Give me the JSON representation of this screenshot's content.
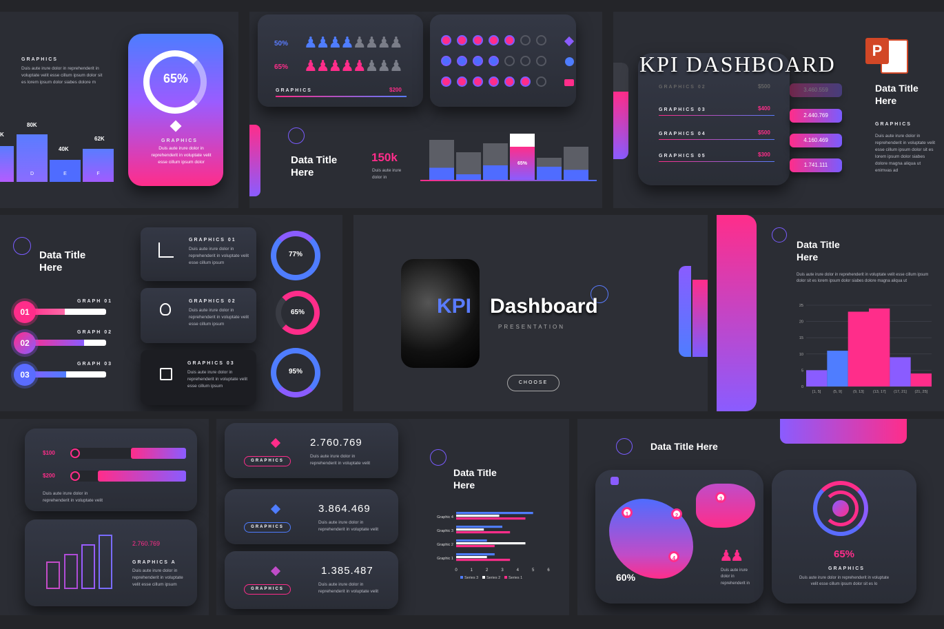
{
  "s1": {
    "label": "GRAPHICS",
    "body": "Duis aute irure dolor in reprehenderit in voluptate velit esse cillum ipsum dolor sit es lorem ipsum dolor siabes dolore m",
    "bars": [
      {
        "value": "K",
        "letter": ""
      },
      {
        "value": "80K",
        "letter": "D"
      },
      {
        "value": "40K",
        "letter": "E"
      },
      {
        "value": "62K",
        "letter": "F"
      }
    ],
    "percent": "65%",
    "card_label": "GRAPHICS",
    "card_body": "Duis aute irure dolor in reprehenderit in voluptate velit esse cillum ipsum dolor"
  },
  "s2": {
    "row1_pct": "50%",
    "row2_pct": "65%",
    "label": "GRAPHICS",
    "amount": "$200",
    "title": "Data Title Here",
    "stat": "150k",
    "stat_body": "Duis aute irure dolor in",
    "bar_pct": "65%"
  },
  "s3": {
    "title": "KPI DASHBOARD",
    "rows": [
      {
        "label": "GRAPHICS 02",
        "amount": "$500",
        "value": "3.460.559"
      },
      {
        "label": "GRAPHICS 03",
        "amount": "$400",
        "value": "2.440.769"
      },
      {
        "label": "GRAPHICS 04",
        "amount": "$500",
        "value": "4.160.469"
      },
      {
        "label": "GRAPHICS 05",
        "amount": "$300",
        "value": "1.741.111"
      }
    ],
    "side_title": "Data Title Here",
    "side_label": "GRAPHICS",
    "side_body": "Duis aute irure dolor in reprehenderit in voluptate velit esse cillum ipsum dolor sit es lorem ipsum dolor siabes dolore magna aliqua ut enimvas ad"
  },
  "s4": {
    "title": "Data Title Here",
    "graphs": [
      {
        "num": "01",
        "label": "GRAPH 01"
      },
      {
        "num": "02",
        "label": "GRAPH 02"
      },
      {
        "num": "03",
        "label": "GRAPH 03"
      }
    ],
    "items": [
      {
        "label": "GRAPHICS 01",
        "body": "Duis aute irure dolor in reprehenderit in voluptate velit esse cillum ipsum",
        "pct": "77%"
      },
      {
        "label": "GRAPHICS 02",
        "body": "Duis aute irure dolor in reprehenderit in voluptate velit esse cillum ipsum",
        "pct": "65%"
      },
      {
        "label": "GRAPHICS 03",
        "body": "Duis aute irure dolor in reprehenderit in voluptate velit esse cillum ipsum",
        "pct": "95%"
      }
    ]
  },
  "s5": {
    "kpi": "KPI",
    "dashboard": "Dashboard",
    "subtitle": "PRESENTATION",
    "button": "CHOOSE"
  },
  "s6": {
    "title": "Data Title Here",
    "body": "Duis aute irure dolor in reprehenderit in voluptate velit esse cillum ipsum dolor sit es lorem ipsum dolor siabes dolore magna aliqua ut",
    "chart_data": {
      "type": "bar",
      "categories": [
        "[1, 5]",
        "(5, 9]",
        "(9, 13]",
        "(13, 17]",
        "(17, 21]",
        "(21, 25]"
      ],
      "values": [
        5,
        11,
        23,
        24,
        9,
        4
      ],
      "ylim": [
        0,
        25
      ],
      "yticks": [
        "0",
        "5",
        "10",
        "15",
        "20",
        "25"
      ]
    }
  },
  "s7": {
    "r1": "$100",
    "r2": "$200",
    "body": "Duis aute irure dolor in reprehenderit in voluptate velit",
    "value": "2.760.769",
    "label": "GRAPHICS A",
    "body2": "Duis aute irure dolor in reprehenderit in voluptate velit esse cillum ipsum"
  },
  "s8": {
    "items": [
      {
        "value": "2.760.769",
        "btn": "GRAPHICS",
        "body": "Duis aute irure dolor in reprehenderit in voluptate velit"
      },
      {
        "value": "3.864.469",
        "btn": "GRAPHICS",
        "body": "Duis aute irure dolor in reprehenderit in voluptate velit"
      },
      {
        "value": "1.385.487",
        "btn": "GRAPHICS",
        "body": "Duis aute irure dolor in reprehenderit in voluptate velit"
      }
    ]
  },
  "s9": {
    "title": "Data Title Here",
    "chart_data": {
      "type": "bar",
      "categories": [
        "Graphic 1",
        "Graphic 2",
        "Graphic 3",
        "Graphic 4"
      ],
      "series": [
        {
          "name": "Series 1",
          "values": [
            3.5,
            2.5,
            3.5,
            4.5
          ]
        },
        {
          "name": "Series 2",
          "values": [
            2,
            4.5,
            1.8,
            2.8
          ]
        },
        {
          "name": "Series 3",
          "values": [
            2.5,
            2,
            3,
            5
          ]
        }
      ],
      "xticks": [
        "0",
        "1",
        "2",
        "3",
        "4",
        "5",
        "6"
      ],
      "xlim": [
        0,
        6
      ]
    }
  },
  "s10": {
    "title": "Data Title Here",
    "map_pct": "60%",
    "pins": [
      "1",
      "2",
      "3",
      "4"
    ],
    "people_body": "Duis aute irure dolor in reprehenderit in",
    "pct": "65%",
    "label": "GRAPHICS",
    "body": "Duis aute irure dolor in reprehenderit in voluptate velit esse cillum ipsum dolor sit es lo"
  }
}
